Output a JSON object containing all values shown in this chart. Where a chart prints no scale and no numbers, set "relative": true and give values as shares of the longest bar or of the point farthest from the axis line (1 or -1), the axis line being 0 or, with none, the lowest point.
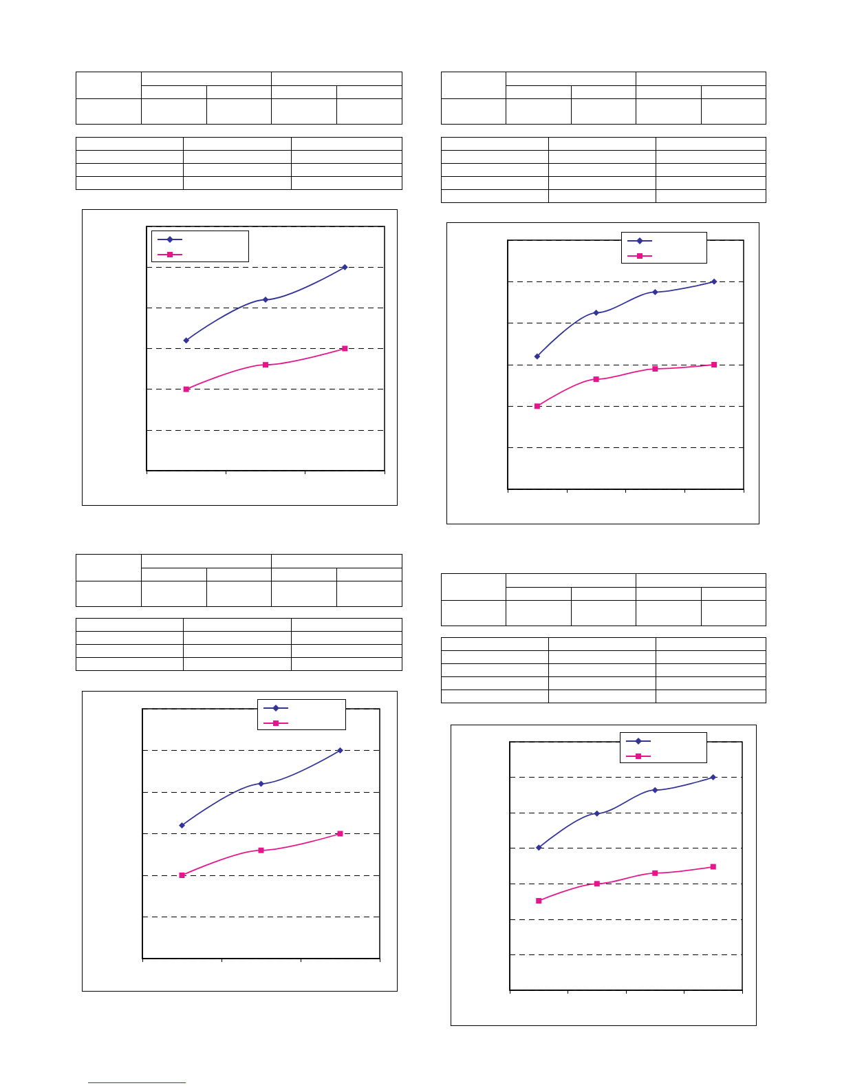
{
  "chart_data": [
    {
      "type": "line",
      "relative": true,
      "categories": [
        null,
        null,
        null
      ],
      "grid": "y",
      "line_style": "solid",
      "series": [
        {
          "color": "#333399",
          "marker": "diamond",
          "values": [
            0.64,
            0.84,
            1.0
          ]
        },
        {
          "color": "#e5168c",
          "marker": "square",
          "values": [
            0.4,
            0.52,
            0.6
          ]
        }
      ]
    },
    {
      "type": "line",
      "relative": true,
      "categories": [
        null,
        null,
        null,
        null
      ],
      "grid": "y",
      "line_style": "solid",
      "series": [
        {
          "color": "#333399",
          "marker": "diamond",
          "values": [
            0.64,
            0.85,
            0.95,
            1.0
          ]
        },
        {
          "color": "#e5168c",
          "marker": "square",
          "values": [
            0.4,
            0.53,
            0.58,
            0.6
          ]
        }
      ]
    },
    {
      "type": "line",
      "relative": true,
      "categories": [
        null,
        null,
        null
      ],
      "grid": "y",
      "line_style": "solid",
      "series": [
        {
          "color": "#333399",
          "marker": "diamond",
          "values": [
            0.64,
            0.84,
            1.0
          ]
        },
        {
          "color": "#e5168c",
          "marker": "square",
          "values": [
            0.4,
            0.52,
            0.6
          ]
        }
      ]
    },
    {
      "type": "line",
      "relative": true,
      "categories": [
        null,
        null,
        null,
        null
      ],
      "grid": "y",
      "line_style": "solid",
      "series": [
        {
          "color": "#333399",
          "marker": "diamond",
          "values": [
            0.67,
            0.83,
            0.94,
            1.0
          ]
        },
        {
          "color": "#e5168c",
          "marker": "square",
          "values": [
            0.42,
            0.5,
            0.55,
            0.58
          ]
        }
      ]
    }
  ]
}
